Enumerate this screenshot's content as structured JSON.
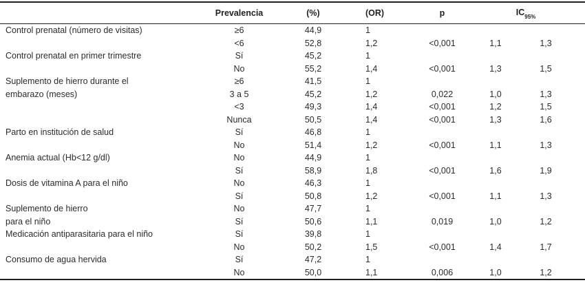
{
  "table": {
    "headers": {
      "variable": "",
      "prevalencia": "Prevalencia",
      "pct": "(%)",
      "or": "(OR)",
      "p": "p",
      "ic": "IC",
      "ic_sub": "95%"
    },
    "rows": [
      {
        "label": "Control prenatal (número de visitas)",
        "cat": "≥6",
        "pct": "44,9",
        "or": "1",
        "p": "",
        "icl": "",
        "ich": ""
      },
      {
        "label": "",
        "cat": "<6",
        "pct": "52,8",
        "or": "1,2",
        "p": "<0,001",
        "icl": "1,1",
        "ich": "1,3"
      },
      {
        "label": "Control prenatal en primer trimestre",
        "cat": "Sí",
        "pct": "45,2",
        "or": "1",
        "p": "",
        "icl": "",
        "ich": ""
      },
      {
        "label": "",
        "cat": "No",
        "pct": "55,2",
        "or": "1,4",
        "p": "<0,001",
        "icl": "1,3",
        "ich": "1,5"
      },
      {
        "label": "Suplemento de hierro durante el",
        "cat": "≥6",
        "pct": "41,5",
        "or": "1",
        "p": "",
        "icl": "",
        "ich": ""
      },
      {
        "label": "embarazo (meses)",
        "cat": "3 a 5",
        "pct": "45,2",
        "or": "1,2",
        "p": "0,022",
        "icl": "1,0",
        "ich": "1,3"
      },
      {
        "label": "",
        "cat": "<3",
        "pct": "49,3",
        "or": "1,4",
        "p": "<0,001",
        "icl": "1,2",
        "ich": "1,5"
      },
      {
        "label": "",
        "cat": "Nunca",
        "pct": "50,5",
        "or": "1,4",
        "p": "<0,001",
        "icl": "1,3",
        "ich": "1,6"
      },
      {
        "label": "Parto en institución de salud",
        "cat": "Sí",
        "pct": "46,8",
        "or": "1",
        "p": "",
        "icl": "",
        "ich": ""
      },
      {
        "label": "",
        "cat": "No",
        "pct": "51,4",
        "or": "1,2",
        "p": "<0,001",
        "icl": "1,1",
        "ich": "1,3"
      },
      {
        "label": "Anemia actual (Hb<12 g/dl)",
        "cat": "No",
        "pct": "44,9",
        "or": "1",
        "p": "",
        "icl": "",
        "ich": ""
      },
      {
        "label": "",
        "cat": "Sí",
        "pct": "58,9",
        "or": "1,8",
        "p": "<0,001",
        "icl": "1,6",
        "ich": "1,9"
      },
      {
        "label": "Dosis de vitamina A para el niño",
        "cat": "No",
        "pct": "46,3",
        "or": "1",
        "p": "",
        "icl": "",
        "ich": ""
      },
      {
        "label": "",
        "cat": "Sí",
        "pct": "50,8",
        "or": "1,2",
        "p": "<0,001",
        "icl": "1,1",
        "ich": "1,3"
      },
      {
        "label": "Suplemento de hierro",
        "cat": "No",
        "pct": "47,7",
        "or": "1",
        "p": "",
        "icl": "",
        "ich": ""
      },
      {
        "label": "para el niño",
        "cat": "Sí",
        "pct": "50,6",
        "or": "1,1",
        "p": "0,019",
        "icl": "1,0",
        "ich": "1,2"
      },
      {
        "label": "Medicación antiparasitaria para el niño",
        "cat": "Sí",
        "pct": "39,8",
        "or": "1",
        "p": "",
        "icl": "",
        "ich": ""
      },
      {
        "label": "",
        "cat": "No",
        "pct": "50,2",
        "or": "1,5",
        "p": "<0,001",
        "icl": "1,4",
        "ich": "1,7"
      },
      {
        "label": "Consumo de agua hervida",
        "cat": "Sí",
        "pct": "47,2",
        "or": "1",
        "p": "",
        "icl": "",
        "ich": ""
      },
      {
        "label": "",
        "cat": "No",
        "pct": "50,0",
        "or": "1,1",
        "p": "0,006",
        "icl": "1,0",
        "ich": "1,2"
      }
    ]
  }
}
